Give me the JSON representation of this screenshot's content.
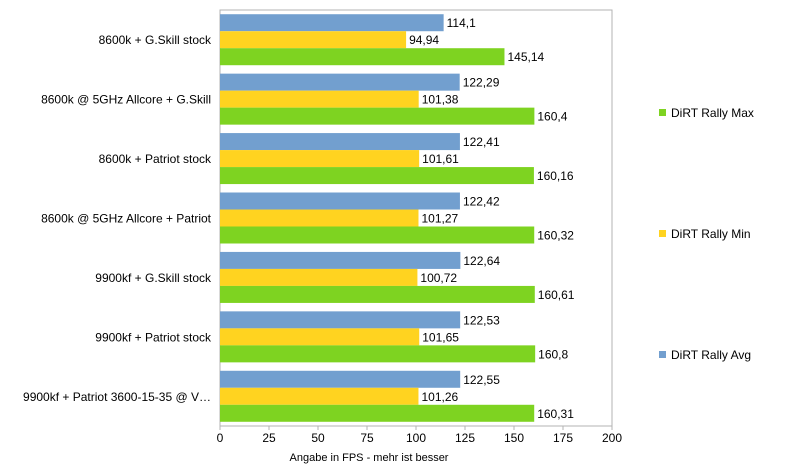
{
  "chart_data": {
    "type": "bar",
    "orientation": "horizontal",
    "categories": [
      "8600k + G.Skill stock",
      "8600k @ 5GHz Allcore + G.Skill",
      "8600k + Patriot stock",
      "8600k @ 5GHz Allcore + Patriot",
      "9900kf + G.Skill stock",
      "9900kf + Patriot stock",
      "9900kf + Patriot 3600-15-35 @ V…"
    ],
    "series": [
      {
        "name": "DiRT Rally Avg",
        "color": "#729fcf",
        "values": [
          114.1,
          122.29,
          122.41,
          122.42,
          122.64,
          122.53,
          122.55
        ],
        "labels": [
          "114,1",
          "122,29",
          "122,41",
          "122,42",
          "122,64",
          "122,53",
          "122,55"
        ]
      },
      {
        "name": "DiRT Rally Min",
        "color": "#ffd320",
        "values": [
          94.94,
          101.38,
          101.61,
          101.27,
          100.72,
          101.65,
          101.26
        ],
        "labels": [
          "94,94",
          "101,38",
          "101,61",
          "101,27",
          "100,72",
          "101,65",
          "101,26"
        ]
      },
      {
        "name": "DiRT Rally Max",
        "color": "#7ed321",
        "values": [
          145.14,
          160.4,
          160.16,
          160.32,
          160.61,
          160.8,
          160.31
        ],
        "labels": [
          "145,14",
          "160,4",
          "160,16",
          "160,32",
          "160,61",
          "160,8",
          "160,31"
        ]
      }
    ],
    "xlabel": "Angabe in FPS - mehr ist besser",
    "xlim": [
      0,
      200
    ],
    "xticks": [
      0,
      25,
      50,
      75,
      100,
      125,
      150,
      175,
      200
    ],
    "legend": {
      "position": "right",
      "order": [
        "DiRT Rally Max",
        "DiRT Rally Min",
        "DiRT Rally Avg"
      ]
    },
    "grid": false
  }
}
